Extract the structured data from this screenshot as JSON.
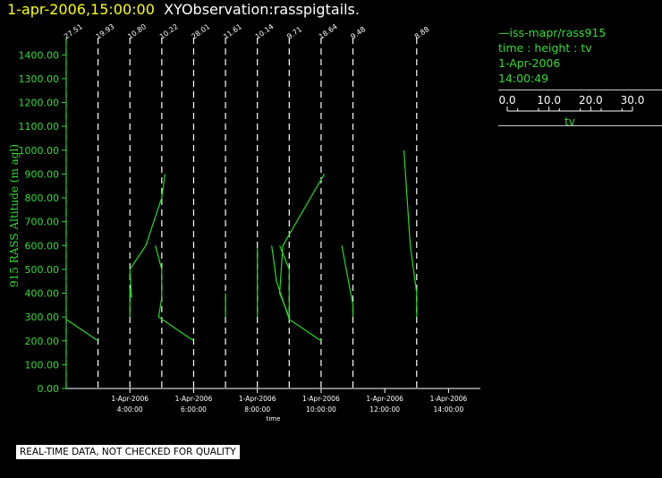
{
  "header": {
    "datetime": "1-apr-2006,15:00:00",
    "product": "XYObservation:rasspigtails."
  },
  "legend": {
    "series": "iss-mapr/rass915",
    "variables": "time : height : tv",
    "date": "1-Apr-2006",
    "time": "14:00:49",
    "colorbar_label": "tv",
    "colorbar_ticks": [
      "0.0",
      "10.0",
      "20.0",
      "30.0"
    ]
  },
  "notice": "REAL-TIME DATA, NOT CHECKED FOR QUALITY",
  "colors": {
    "trace": "#22dd22",
    "axis": "#33dd33",
    "text": "#ffffff",
    "date": "#ffff00"
  },
  "chart_data": {
    "type": "line",
    "xlabel": "time",
    "ylabel": "915 RASS Altitude (m agl)",
    "ylim": [
      0,
      1450
    ],
    "xlim": [
      2.0,
      15.0
    ],
    "x_unit": "hours since 1-Apr-2006 00:00",
    "y_ticks": [
      "0.00",
      "100.00",
      "200.00",
      "300.00",
      "400.00",
      "500.00",
      "600.00",
      "700.00",
      "800.00",
      "900.00",
      "1000.00",
      "1100.00",
      "1200.00",
      "1300.00",
      "1400.00"
    ],
    "x_ticks": [
      {
        "x": 4,
        "date": "1-Apr-2006",
        "time": "4:00:00"
      },
      {
        "x": 6,
        "date": "1-Apr-2006",
        "time": "6:00:00"
      },
      {
        "x": 8,
        "date": "1-Apr-2006",
        "time": "8:00:00"
      },
      {
        "x": 10,
        "date": "1-Apr-2006",
        "time": "10:00:00"
      },
      {
        "x": 12,
        "date": "1-Apr-2006",
        "time": "12:00:00"
      },
      {
        "x": 14,
        "date": "1-Apr-2006",
        "time": "14:00:00"
      }
    ],
    "profiles": [
      {
        "x": 2.0,
        "surface_value": "27.51",
        "trace": [
          [
            2.0,
            290
          ],
          [
            3.0,
            200
          ]
        ]
      },
      {
        "x": 3.0,
        "surface_value": "19.93",
        "trace": []
      },
      {
        "x": 4.0,
        "surface_value": "10.80",
        "trace": [
          [
            4.0,
            300
          ],
          [
            4.0,
            420
          ],
          [
            4.05,
            380
          ],
          [
            4.0,
            500
          ],
          [
            4.5,
            600
          ],
          [
            5.0,
            800
          ],
          [
            5.1,
            900
          ]
        ]
      },
      {
        "x": 5.0,
        "surface_value": "10.22",
        "trace": [
          [
            4.8,
            600
          ],
          [
            5.0,
            500
          ],
          [
            5.0,
            380
          ],
          [
            4.9,
            300
          ],
          [
            6.0,
            200
          ]
        ]
      },
      {
        "x": 6.0,
        "surface_value": "28.01",
        "trace": []
      },
      {
        "x": 7.0,
        "surface_value": "11.61",
        "trace": [
          [
            7.0,
            400
          ],
          [
            7.0,
            300
          ]
        ]
      },
      {
        "x": 8.0,
        "surface_value": "10.14",
        "trace": [
          [
            8.0,
            300
          ],
          [
            8.0,
            590
          ]
        ]
      },
      {
        "x": 9.0,
        "surface_value": "9.71",
        "trace": [
          [
            8.45,
            600
          ],
          [
            8.6,
            450
          ],
          [
            9.0,
            290
          ],
          [
            10.0,
            200
          ]
        ]
      },
      {
        "x": 10.0,
        "surface_value": "18.64",
        "trace": [
          [
            8.7,
            600
          ],
          [
            9.0,
            500
          ],
          [
            9.0,
            300
          ],
          [
            8.7,
            400
          ],
          [
            8.8,
            600
          ],
          [
            10.1,
            900
          ]
        ]
      },
      {
        "x": 11.0,
        "surface_value": "9.48",
        "trace": [
          [
            10.65,
            600
          ],
          [
            11.0,
            350
          ],
          [
            11.0,
            300
          ]
        ]
      },
      {
        "x": 13.0,
        "surface_value": "8.88",
        "trace": [
          [
            12.6,
            1000
          ],
          [
            12.8,
            600
          ],
          [
            13.0,
            400
          ],
          [
            13.0,
            300
          ]
        ]
      }
    ]
  }
}
